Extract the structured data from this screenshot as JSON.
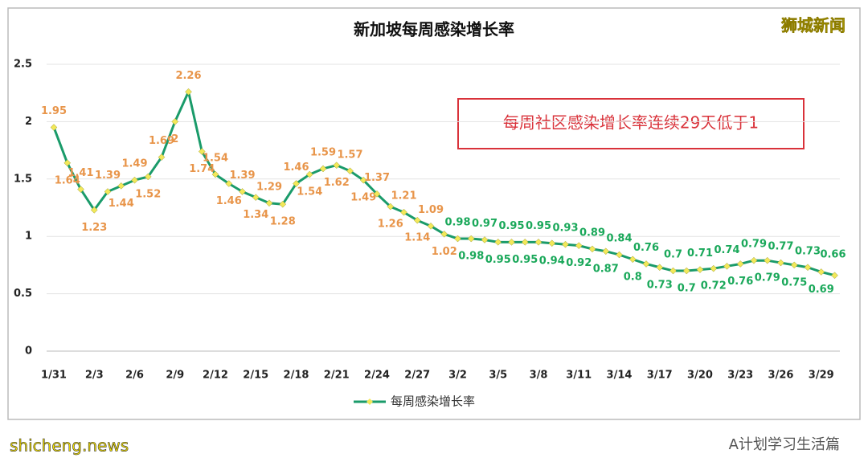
{
  "chart_data": {
    "type": "line",
    "title": "新加坡每周感染增长率",
    "annotation": "每周社区感染增长率连续29天低于1",
    "watermark": "狮城新闻",
    "footer_left": "shicheng.news",
    "footer_right": "A计划学习生活篇",
    "categories": [
      "1/31",
      null,
      null,
      "2/3",
      null,
      null,
      "2/6",
      null,
      null,
      "2/9",
      null,
      null,
      "2/12",
      null,
      null,
      "2/15",
      null,
      null,
      "2/18",
      null,
      null,
      "2/21",
      null,
      null,
      "2/24",
      null,
      null,
      "2/27",
      null,
      null,
      "3/2",
      null,
      null,
      "3/5",
      null,
      null,
      "3/8",
      null,
      null,
      "3/11",
      null,
      null,
      "3/14",
      null,
      null,
      "3/17",
      null,
      null,
      "3/20",
      null,
      null,
      "3/23",
      null,
      null,
      "3/26",
      null,
      null,
      "3/29",
      null
    ],
    "series": [
      {
        "name": "每周感染增长率",
        "color": "#1a9b6a",
        "marker_color": "#f2e85a",
        "values": [
          1.95,
          1.64,
          1.41,
          1.23,
          1.39,
          1.44,
          1.49,
          1.52,
          1.69,
          2,
          2.26,
          1.74,
          1.54,
          1.46,
          1.39,
          1.34,
          1.29,
          1.28,
          1.46,
          1.54,
          1.59,
          1.62,
          1.57,
          1.49,
          1.37,
          1.26,
          1.21,
          1.14,
          1.09,
          1.02,
          0.98,
          0.98,
          0.97,
          0.95,
          0.95,
          0.95,
          0.95,
          0.94,
          0.93,
          0.92,
          0.89,
          0.87,
          0.84,
          0.8,
          0.76,
          0.73,
          0.7,
          0.7,
          0.71,
          0.72,
          0.74,
          0.76,
          0.79,
          0.79,
          0.77,
          0.75,
          0.73,
          0.69,
          0.66
        ]
      }
    ],
    "label_colors": {
      "above": "#e8954a",
      "below": "#1aa85a"
    },
    "color_threshold": 1,
    "ylim": [
      0,
      2.5
    ],
    "yticks": [
      0,
      0.5,
      1,
      1.5,
      2,
      2.5
    ],
    "grid": true
  }
}
